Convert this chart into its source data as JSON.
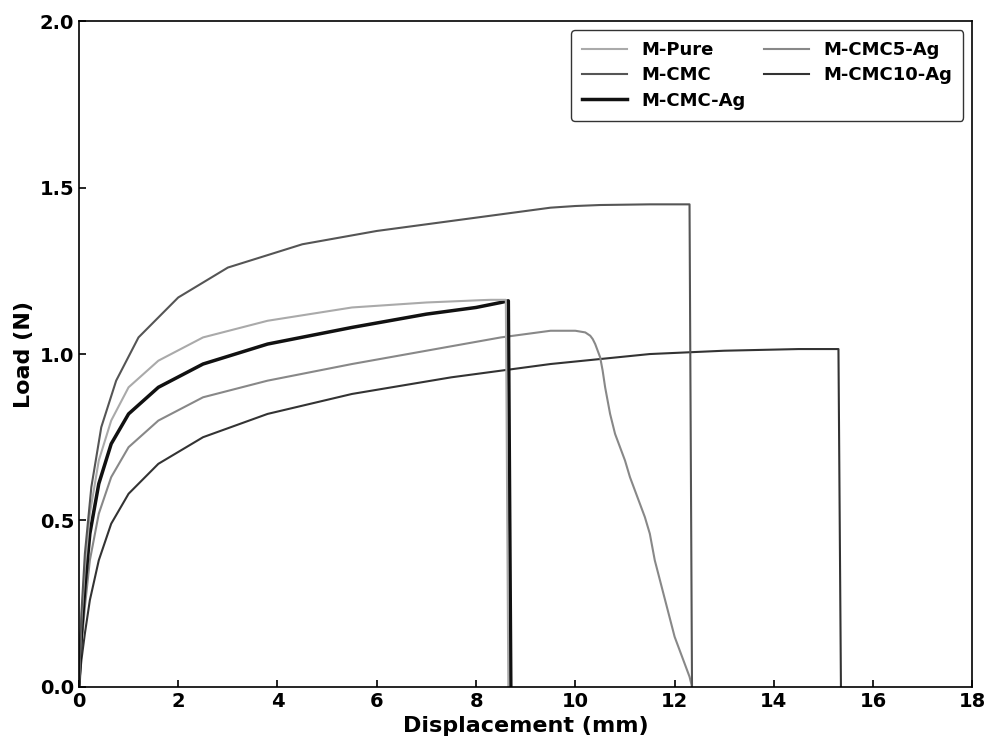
{
  "title": "",
  "xlabel": "Displacement (mm)",
  "ylabel": "Load (N)",
  "xlim": [
    0,
    18
  ],
  "ylim": [
    0,
    2.0
  ],
  "xticks": [
    0,
    2,
    4,
    6,
    8,
    10,
    12,
    14,
    16,
    18
  ],
  "yticks": [
    0.0,
    0.5,
    1.0,
    1.5,
    2.0
  ],
  "curves": {
    "M-CMC": {
      "color": "#555555",
      "linewidth": 1.5,
      "x": [
        0,
        0.05,
        0.12,
        0.25,
        0.45,
        0.75,
        1.2,
        2.0,
        3.0,
        4.5,
        6.0,
        7.5,
        8.5,
        9.0,
        9.5,
        10.0,
        10.5,
        11.0,
        11.5,
        12.0,
        12.3,
        12.35
      ],
      "y": [
        0,
        0.22,
        0.4,
        0.6,
        0.78,
        0.92,
        1.05,
        1.17,
        1.26,
        1.33,
        1.37,
        1.4,
        1.42,
        1.43,
        1.44,
        1.445,
        1.448,
        1.449,
        1.45,
        1.45,
        1.45,
        0.0
      ]
    },
    "M-Pure": {
      "color": "#aaaaaa",
      "linewidth": 1.5,
      "x": [
        0,
        0.05,
        0.12,
        0.22,
        0.4,
        0.65,
        1.0,
        1.6,
        2.5,
        3.8,
        5.5,
        7.0,
        7.8,
        8.1,
        8.3,
        8.5,
        8.6,
        8.65
      ],
      "y": [
        0,
        0.2,
        0.36,
        0.52,
        0.68,
        0.8,
        0.9,
        0.98,
        1.05,
        1.1,
        1.14,
        1.155,
        1.16,
        1.162,
        1.163,
        1.163,
        1.163,
        0.0
      ]
    },
    "M-CMC-Ag": {
      "color": "#111111",
      "linewidth": 2.5,
      "x": [
        0,
        0.05,
        0.12,
        0.22,
        0.4,
        0.65,
        1.0,
        1.6,
        2.5,
        3.8,
        5.5,
        7.0,
        8.0,
        8.5,
        8.65,
        8.7
      ],
      "y": [
        0,
        0.16,
        0.3,
        0.46,
        0.61,
        0.73,
        0.82,
        0.9,
        0.97,
        1.03,
        1.08,
        1.12,
        1.14,
        1.155,
        1.16,
        0.0
      ]
    },
    "M-CMC5-Ag": {
      "color": "#888888",
      "linewidth": 1.5,
      "x": [
        0,
        0.05,
        0.12,
        0.22,
        0.4,
        0.65,
        1.0,
        1.6,
        2.5,
        3.8,
        5.5,
        7.0,
        8.5,
        9.5,
        10.0,
        10.2,
        10.3,
        10.35,
        10.4,
        10.5,
        10.55,
        10.6,
        10.65,
        10.7,
        10.8,
        10.9,
        11.0,
        11.1,
        11.2,
        11.3,
        11.4,
        11.5,
        11.55,
        11.6,
        12.0,
        12.3,
        12.35
      ],
      "y": [
        0,
        0.12,
        0.24,
        0.38,
        0.52,
        0.63,
        0.72,
        0.8,
        0.87,
        0.92,
        0.97,
        1.01,
        1.05,
        1.07,
        1.07,
        1.065,
        1.055,
        1.045,
        1.03,
        0.99,
        0.95,
        0.9,
        0.86,
        0.82,
        0.76,
        0.72,
        0.68,
        0.63,
        0.59,
        0.55,
        0.51,
        0.46,
        0.42,
        0.38,
        0.15,
        0.03,
        0.0
      ]
    },
    "M-CMC10-Ag": {
      "color": "#333333",
      "linewidth": 1.5,
      "x": [
        0,
        0.05,
        0.12,
        0.22,
        0.4,
        0.65,
        1.0,
        1.6,
        2.5,
        3.8,
        5.5,
        7.5,
        9.5,
        11.5,
        13.0,
        14.5,
        15.0,
        15.2,
        15.3,
        15.35
      ],
      "y": [
        0,
        0.08,
        0.16,
        0.26,
        0.38,
        0.49,
        0.58,
        0.67,
        0.75,
        0.82,
        0.88,
        0.93,
        0.97,
        1.0,
        1.01,
        1.015,
        1.015,
        1.015,
        1.015,
        0.0
      ]
    }
  },
  "legend_order": [
    "M-Pure",
    "M-CMC",
    "M-CMC-Ag",
    "M-CMC5-Ag",
    "M-CMC10-Ag"
  ],
  "legend_colors": {
    "M-Pure": "#aaaaaa",
    "M-CMC": "#555555",
    "M-CMC-Ag": "#111111",
    "M-CMC5-Ag": "#888888",
    "M-CMC10-Ag": "#333333"
  },
  "legend_linewidths": {
    "M-Pure": 1.5,
    "M-CMC": 1.5,
    "M-CMC-Ag": 2.5,
    "M-CMC5-Ag": 1.5,
    "M-CMC10-Ag": 1.5
  }
}
